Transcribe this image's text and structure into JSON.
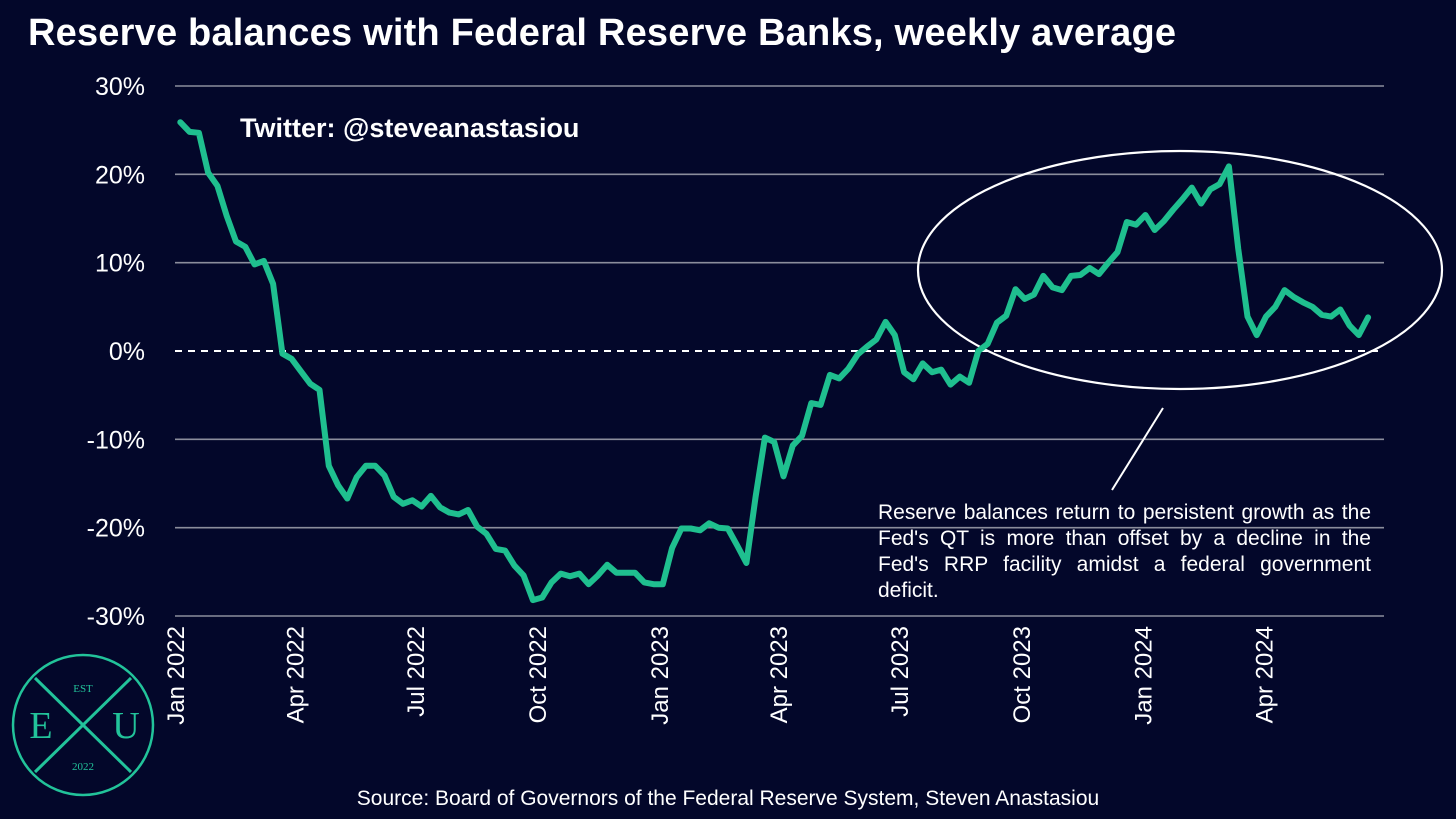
{
  "chart_data": {
    "type": "line",
    "title": "Reserve balances with Federal Reserve Banks, weekly average",
    "xlabel": "",
    "ylabel": "",
    "ylim": [
      -30,
      30
    ],
    "y_ticks": [
      30,
      20,
      10,
      0,
      -10,
      -20,
      -30
    ],
    "y_tick_labels": [
      "30%",
      "20%",
      "10%",
      "0%",
      "-10%",
      "-20%",
      "-30%"
    ],
    "x_ticks": [
      "2022-01-01",
      "2022-04-01",
      "2022-07-01",
      "2022-10-01",
      "2023-01-01",
      "2023-04-01",
      "2023-07-01",
      "2023-10-01",
      "2024-01-01",
      "2024-04-01"
    ],
    "x_tick_labels": [
      "Jan 2022",
      "Apr 2022",
      "Jul 2022",
      "Oct 2022",
      "Jan 2023",
      "Apr 2023",
      "Jul 2023",
      "Oct 2023",
      "Jan 2024",
      "Apr 2024"
    ],
    "grid": true,
    "zero_line": "dashed",
    "series": [
      {
        "color": "#1fbf8f",
        "points": [
          [
            "2022-01-05",
            25.9
          ],
          [
            "2022-01-12",
            24.8
          ],
          [
            "2022-01-19",
            24.7
          ],
          [
            "2022-01-26",
            20.2
          ],
          [
            "2022-02-02",
            18.7
          ],
          [
            "2022-02-09",
            15.3
          ],
          [
            "2022-02-16",
            12.4
          ],
          [
            "2022-02-23",
            11.8
          ],
          [
            "2022-03-02",
            9.8
          ],
          [
            "2022-03-09",
            10.2
          ],
          [
            "2022-03-16",
            7.6
          ],
          [
            "2022-03-23",
            -0.3
          ],
          [
            "2022-03-30",
            -0.9
          ],
          [
            "2022-04-06",
            -2.3
          ],
          [
            "2022-04-13",
            -3.7
          ],
          [
            "2022-04-20",
            -4.4
          ],
          [
            "2022-04-27",
            -13.0
          ],
          [
            "2022-05-04",
            -15.2
          ],
          [
            "2022-05-11",
            -16.7
          ],
          [
            "2022-05-18",
            -14.3
          ],
          [
            "2022-05-25",
            -13.0
          ],
          [
            "2022-06-01",
            -13.0
          ],
          [
            "2022-06-08",
            -14.1
          ],
          [
            "2022-06-15",
            -16.5
          ],
          [
            "2022-06-22",
            -17.3
          ],
          [
            "2022-06-29",
            -16.9
          ],
          [
            "2022-07-06",
            -17.6
          ],
          [
            "2022-07-13",
            -16.4
          ],
          [
            "2022-07-20",
            -17.7
          ],
          [
            "2022-07-27",
            -18.3
          ],
          [
            "2022-08-03",
            -18.5
          ],
          [
            "2022-08-10",
            -18.0
          ],
          [
            "2022-08-17",
            -19.9
          ],
          [
            "2022-08-24",
            -20.7
          ],
          [
            "2022-08-31",
            -22.4
          ],
          [
            "2022-09-07",
            -22.6
          ],
          [
            "2022-09-14",
            -24.3
          ],
          [
            "2022-09-21",
            -25.4
          ],
          [
            "2022-09-28",
            -28.2
          ],
          [
            "2022-10-05",
            -27.9
          ],
          [
            "2022-10-12",
            -26.2
          ],
          [
            "2022-10-19",
            -25.2
          ],
          [
            "2022-10-26",
            -25.5
          ],
          [
            "2022-11-02",
            -25.2
          ],
          [
            "2022-11-09",
            -26.4
          ],
          [
            "2022-11-16",
            -25.4
          ],
          [
            "2022-11-23",
            -24.2
          ],
          [
            "2022-11-30",
            -25.1
          ],
          [
            "2022-12-07",
            -25.1
          ],
          [
            "2022-12-14",
            -25.1
          ],
          [
            "2022-12-21",
            -26.2
          ],
          [
            "2022-12-28",
            -26.4
          ],
          [
            "2023-01-04",
            -26.4
          ],
          [
            "2023-01-11",
            -22.3
          ],
          [
            "2023-01-18",
            -20.1
          ],
          [
            "2023-01-25",
            -20.1
          ],
          [
            "2023-02-01",
            -20.3
          ],
          [
            "2023-02-08",
            -19.5
          ],
          [
            "2023-02-15",
            -20.0
          ],
          [
            "2023-02-22",
            -20.1
          ],
          [
            "2023-03-01",
            -22.0
          ],
          [
            "2023-03-08",
            -24.0
          ],
          [
            "2023-03-15",
            -16.5
          ],
          [
            "2023-03-22",
            -9.8
          ],
          [
            "2023-03-29",
            -10.3
          ],
          [
            "2023-04-05",
            -14.2
          ],
          [
            "2023-04-12",
            -10.7
          ],
          [
            "2023-04-19",
            -9.6
          ],
          [
            "2023-04-26",
            -5.9
          ],
          [
            "2023-05-03",
            -6.1
          ],
          [
            "2023-05-10",
            -2.7
          ],
          [
            "2023-05-17",
            -3.1
          ],
          [
            "2023-05-24",
            -2.0
          ],
          [
            "2023-05-31",
            -0.4
          ],
          [
            "2023-06-07",
            0.5
          ],
          [
            "2023-06-14",
            1.3
          ],
          [
            "2023-06-21",
            3.3
          ],
          [
            "2023-06-28",
            1.8
          ],
          [
            "2023-07-05",
            -2.4
          ],
          [
            "2023-07-12",
            -3.2
          ],
          [
            "2023-07-19",
            -1.4
          ],
          [
            "2023-07-26",
            -2.4
          ],
          [
            "2023-08-02",
            -2.1
          ],
          [
            "2023-08-09",
            -3.8
          ],
          [
            "2023-08-16",
            -2.9
          ],
          [
            "2023-08-23",
            -3.6
          ],
          [
            "2023-08-30",
            0.0
          ],
          [
            "2023-09-06",
            0.8
          ],
          [
            "2023-09-13",
            3.2
          ],
          [
            "2023-09-20",
            4.0
          ],
          [
            "2023-09-27",
            7.0
          ],
          [
            "2023-10-04",
            5.9
          ],
          [
            "2023-10-11",
            6.4
          ],
          [
            "2023-10-18",
            8.5
          ],
          [
            "2023-10-25",
            7.2
          ],
          [
            "2023-11-01",
            6.9
          ],
          [
            "2023-11-08",
            8.5
          ],
          [
            "2023-11-15",
            8.6
          ],
          [
            "2023-11-22",
            9.4
          ],
          [
            "2023-11-29",
            8.7
          ],
          [
            "2023-12-06",
            10.0
          ],
          [
            "2023-12-13",
            11.2
          ],
          [
            "2023-12-20",
            14.6
          ],
          [
            "2023-12-27",
            14.3
          ],
          [
            "2024-01-03",
            15.4
          ],
          [
            "2024-01-10",
            13.7
          ],
          [
            "2024-01-17",
            14.7
          ],
          [
            "2024-01-24",
            16.0
          ],
          [
            "2024-01-31",
            17.2
          ],
          [
            "2024-02-07",
            18.5
          ],
          [
            "2024-02-14",
            16.7
          ],
          [
            "2024-02-21",
            18.3
          ],
          [
            "2024-02-28",
            18.9
          ],
          [
            "2024-03-06",
            20.9
          ],
          [
            "2024-03-13",
            11.6
          ],
          [
            "2024-03-20",
            3.9
          ],
          [
            "2024-03-27",
            1.8
          ],
          [
            "2024-04-03",
            3.9
          ],
          [
            "2024-04-10",
            5.0
          ],
          [
            "2024-04-17",
            6.9
          ],
          [
            "2024-04-24",
            6.1
          ],
          [
            "2024-05-01",
            5.5
          ],
          [
            "2024-05-08",
            5.0
          ],
          [
            "2024-05-15",
            4.1
          ],
          [
            "2024-05-22",
            3.9
          ],
          [
            "2024-05-29",
            4.7
          ],
          [
            "2024-06-05",
            2.9
          ],
          [
            "2024-06-12",
            1.8
          ],
          [
            "2024-06-19",
            3.8
          ]
        ]
      }
    ],
    "annotations": {
      "handle": "Twitter: @steveanastasiou",
      "note": "Reserve balances return to persistent growth as the Fed's QT is more than offset by a decline in the Fed's RRP facility amidst a federal government deficit."
    },
    "source": "Source: Board of Governors of the Federal Reserve System, Steven Anastasiou"
  },
  "logo": {
    "top": "EST",
    "left": "E",
    "right": "U",
    "bottom": "2022",
    "color": "#22c39a"
  },
  "theme": {
    "background": "#03072a",
    "line": "#1fbf8f",
    "grid": "#8b8d9c",
    "text": "#ffffff"
  }
}
